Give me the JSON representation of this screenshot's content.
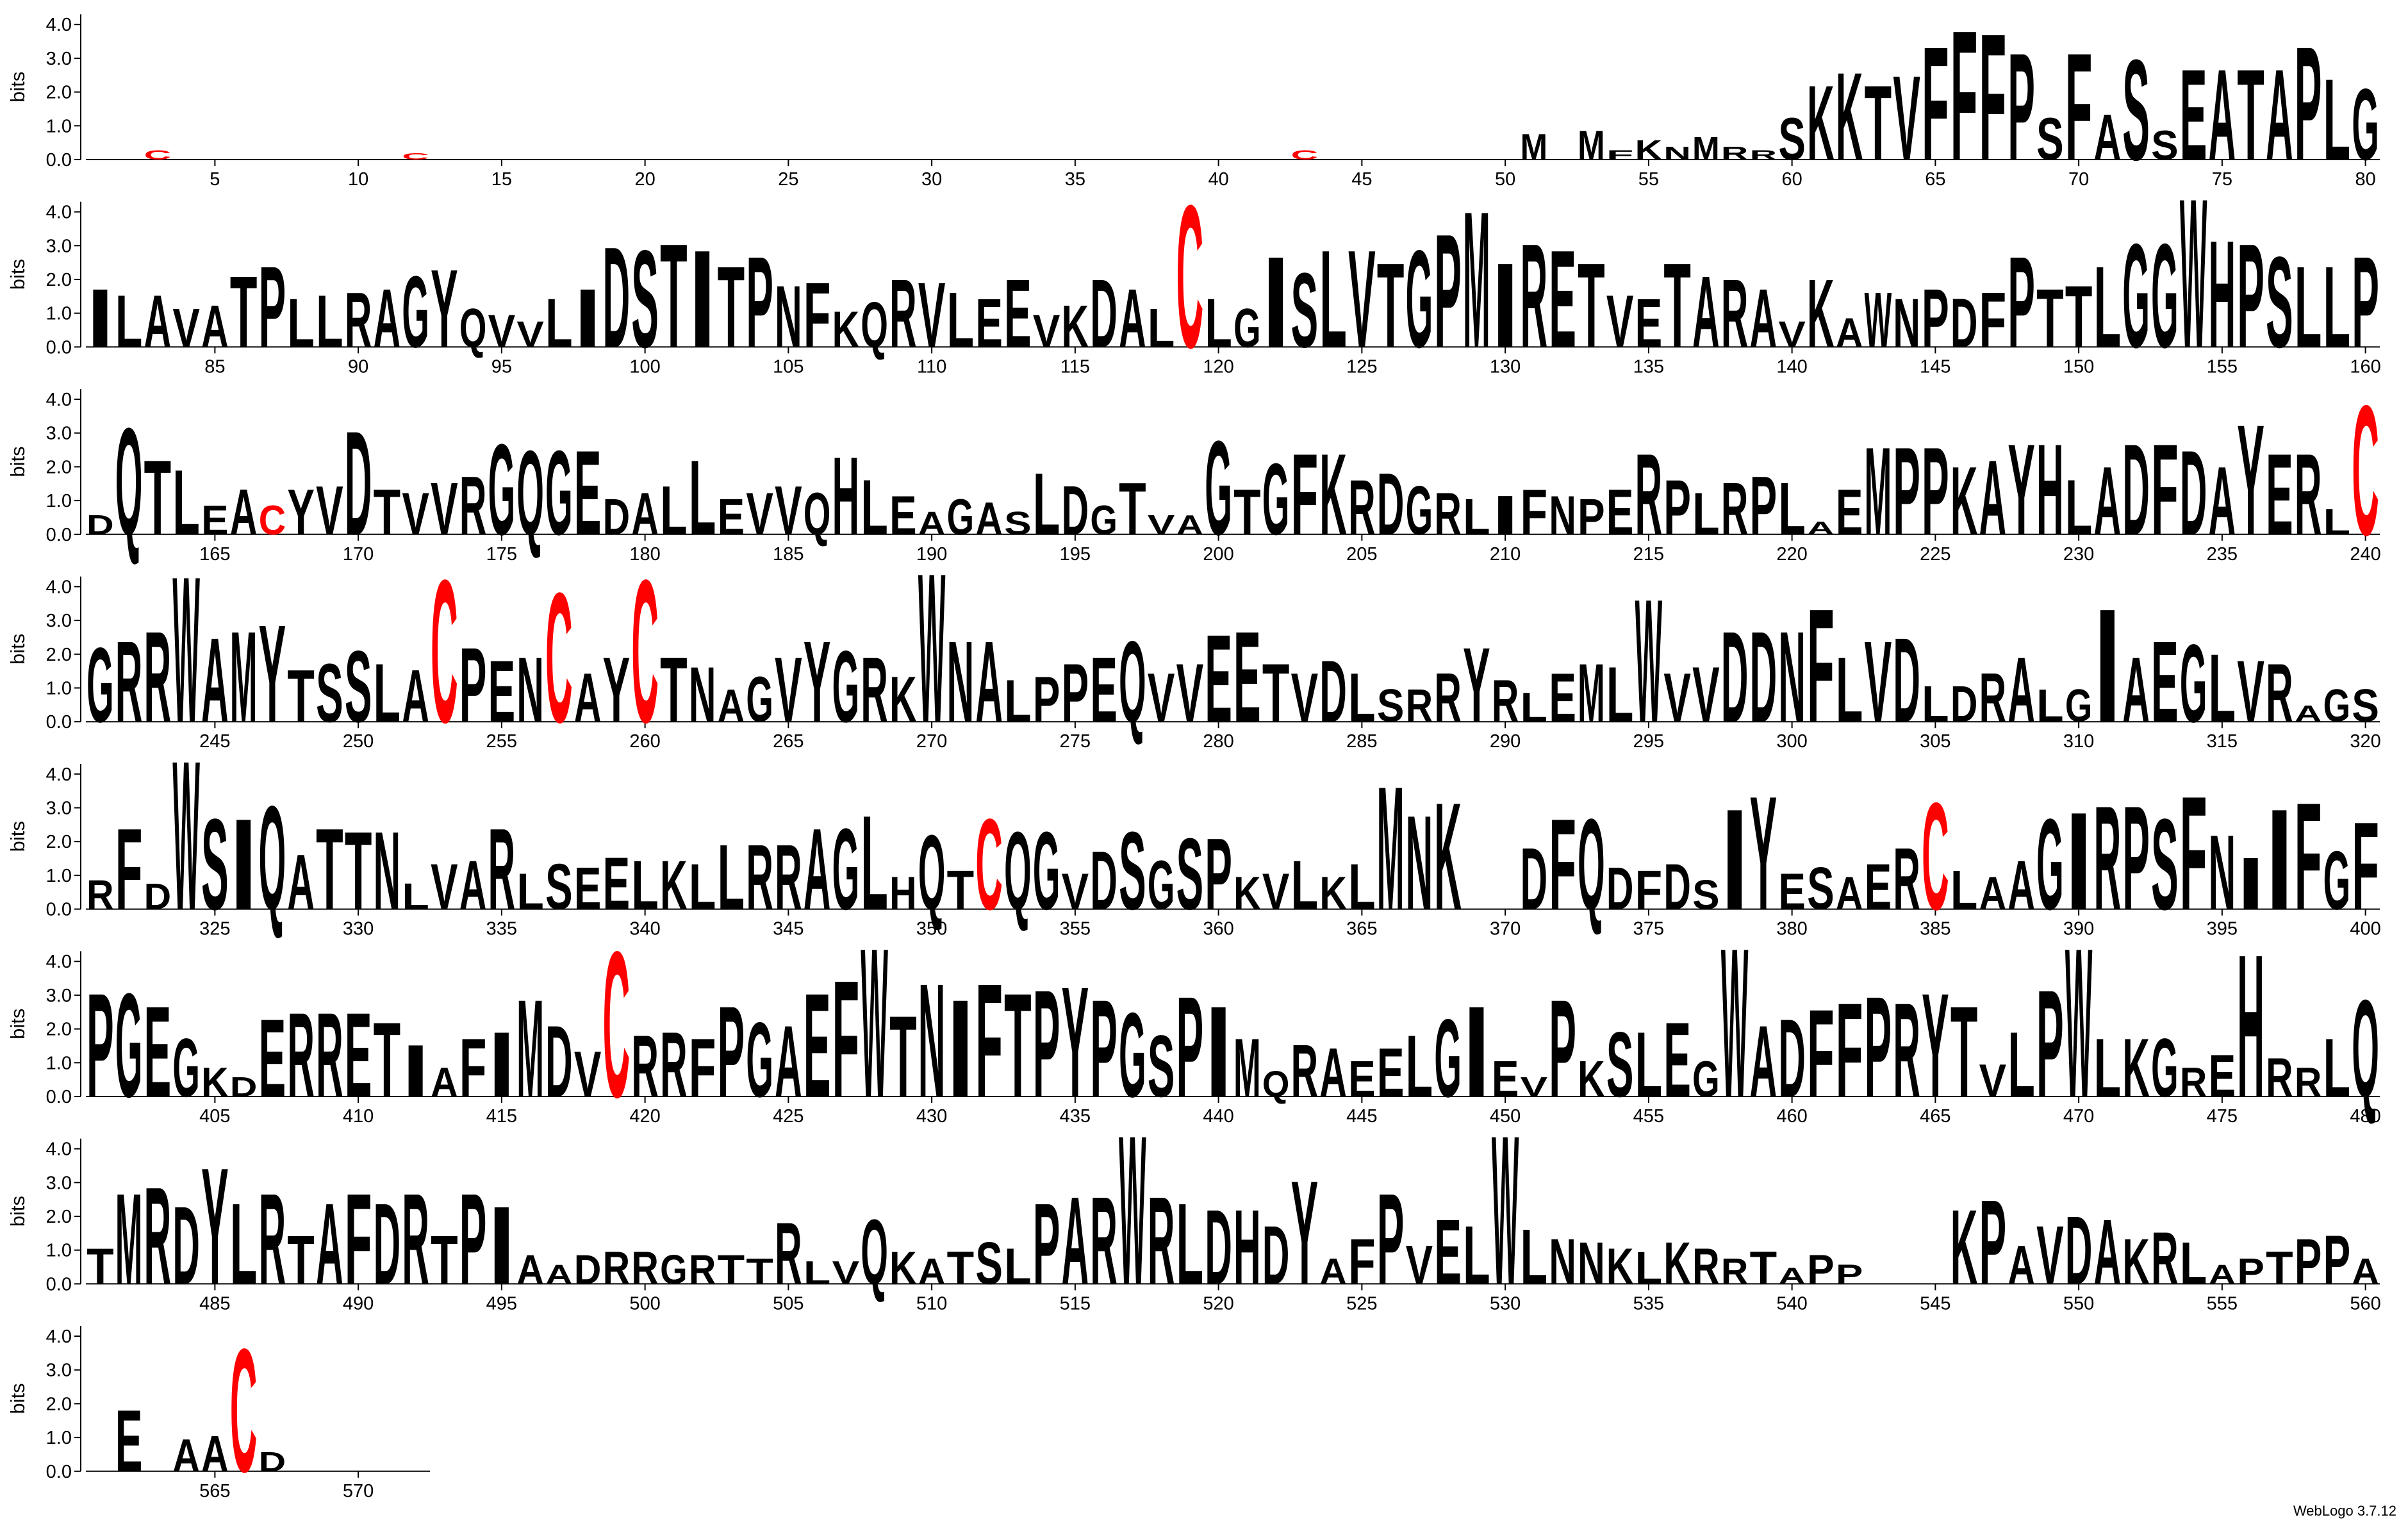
{
  "chart_data": {
    "type": "logo",
    "y_label": "bits",
    "credit": "WebLogo 3.7.12",
    "color": "#000000",
    "colors": {
      "C": "#ff0000"
    },
    "ylim": [
      0,
      4.3
    ],
    "yticks": [
      {
        "value": 0,
        "label": "0.0"
      },
      {
        "value": 1,
        "label": "1.0"
      },
      {
        "value": 2,
        "label": "2.0"
      },
      {
        "value": 3,
        "label": "3.0"
      },
      {
        "value": 4,
        "label": "4.0"
      }
    ],
    "xticks": [
      5,
      10,
      15,
      20,
      25,
      30,
      35,
      40,
      45,
      50,
      55,
      60,
      65,
      70,
      75,
      80,
      85,
      90,
      95,
      100,
      105,
      110,
      115,
      120,
      125,
      130,
      135,
      140,
      145,
      150,
      155,
      160,
      165,
      170,
      175,
      180,
      185,
      190,
      195,
      200,
      205,
      210,
      215,
      220,
      225,
      230,
      235,
      240,
      245,
      250,
      255,
      260,
      265,
      270,
      275,
      280,
      285,
      290,
      295,
      300,
      305,
      310,
      315,
      320,
      325,
      330,
      335,
      340,
      345,
      350,
      355,
      360,
      365,
      370,
      375,
      380,
      385,
      390,
      395,
      400,
      405,
      410,
      415,
      420,
      425,
      430,
      435,
      440,
      445,
      450,
      455,
      460,
      465,
      470,
      475,
      480,
      485,
      490,
      495,
      500,
      505,
      510,
      515,
      520,
      525,
      530,
      535,
      540,
      545,
      550,
      555,
      560,
      565,
      570
    ],
    "letters": [
      null,
      null,
      "C",
      null,
      null,
      null,
      null,
      null,
      null,
      null,
      null,
      "C",
      null,
      null,
      null,
      null,
      null,
      null,
      null,
      null,
      null,
      null,
      null,
      null,
      null,
      null,
      null,
      null,
      null,
      null,
      null,
      null,
      null,
      null,
      null,
      null,
      null,
      null,
      null,
      null,
      null,
      null,
      "C",
      null,
      null,
      null,
      null,
      null,
      null,
      null,
      "M",
      null,
      "M",
      "F",
      "K",
      "N",
      "M",
      "R",
      "R",
      "S",
      "K",
      "K",
      "T",
      "V",
      "F",
      "F",
      "F",
      "P",
      "S",
      "F",
      "A",
      "S",
      "S",
      "E",
      "A",
      "T",
      "A",
      "P",
      "L",
      "G",
      "I",
      "L",
      "A",
      "V",
      "A",
      "T",
      "P",
      "L",
      "L",
      "R",
      "A",
      "G",
      "Y",
      "Q",
      "V",
      "V",
      "L",
      "I",
      "D",
      "S",
      "T",
      "I",
      "T",
      "P",
      "N",
      "F",
      "K",
      "Q",
      "R",
      "V",
      "L",
      "E",
      "E",
      "V",
      "K",
      "D",
      "A",
      "L",
      "C",
      "L",
      "G",
      "I",
      "S",
      "L",
      "V",
      "T",
      "G",
      "P",
      "M",
      "I",
      "R",
      "E",
      "T",
      "V",
      "E",
      "T",
      "A",
      "R",
      "A",
      "V",
      "K",
      "A",
      "W",
      "N",
      "P",
      "D",
      "F",
      "P",
      "T",
      "T",
      "L",
      "G",
      "G",
      "W",
      "H",
      "P",
      "S",
      "L",
      "L",
      "P",
      "D",
      "Q",
      "T",
      "L",
      "E",
      "A",
      "C",
      "Y",
      "V",
      "D",
      "T",
      "V",
      "V",
      "R",
      "G",
      "Q",
      "G",
      "E",
      "D",
      "A",
      "L",
      "L",
      "E",
      "V",
      "V",
      "Q",
      "H",
      "L",
      "E",
      "A",
      "G",
      "A",
      "S",
      "L",
      "D",
      "G",
      "T",
      "V",
      "A",
      "G",
      "T",
      "G",
      "F",
      "K",
      "R",
      "D",
      "G",
      "R",
      "L",
      "I",
      "F",
      "N",
      "P",
      "E",
      "R",
      "P",
      "L",
      "R",
      "P",
      "L",
      "A",
      "E",
      "M",
      "P",
      "P",
      "K",
      "A",
      "Y",
      "H",
      "L",
      "A",
      "D",
      "F",
      "D",
      "A",
      "Y",
      "E",
      "R",
      "L",
      "C",
      "G",
      "R",
      "R",
      "W",
      "A",
      "M",
      "Y",
      "T",
      "S",
      "S",
      "L",
      "A",
      "C",
      "P",
      "E",
      "N",
      "C",
      "A",
      "Y",
      "C",
      "T",
      "N",
      "A",
      "G",
      "V",
      "Y",
      "G",
      "R",
      "K",
      "W",
      "N",
      "A",
      "L",
      "P",
      "P",
      "E",
      "Q",
      "V",
      "V",
      "E",
      "E",
      "T",
      "V",
      "D",
      "L",
      "S",
      "R",
      "R",
      "Y",
      "R",
      "L",
      "E",
      "M",
      "L",
      "W",
      "V",
      "V",
      "D",
      "D",
      "N",
      "F",
      "L",
      "V",
      "D",
      "L",
      "D",
      "R",
      "A",
      "L",
      "G",
      "I",
      "A",
      "E",
      "G",
      "L",
      "V",
      "R",
      "A",
      "G",
      "S",
      "R",
      "F",
      "D",
      "W",
      "S",
      "I",
      "Q",
      "A",
      "T",
      "T",
      "N",
      "L",
      "V",
      "A",
      "R",
      "L",
      "S",
      "E",
      "E",
      "L",
      "K",
      "L",
      "L",
      "R",
      "R",
      "A",
      "G",
      "L",
      "H",
      "Q",
      "T",
      "C",
      "Q",
      "G",
      "V",
      "D",
      "S",
      "G",
      "S",
      "P",
      "K",
      "V",
      "L",
      "K",
      "L",
      "M",
      "N",
      "K",
      null,
      null,
      "D",
      "F",
      "Q",
      "D",
      "F",
      "D",
      "S",
      "I",
      "Y",
      "E",
      "S",
      "A",
      "E",
      "R",
      "C",
      "L",
      "A",
      "A",
      "G",
      "I",
      "R",
      "P",
      "S",
      "F",
      "N",
      "I",
      "I",
      "F",
      "G",
      "F",
      "P",
      "G",
      "E",
      "G",
      "K",
      "D",
      "E",
      "R",
      "R",
      "E",
      "T",
      "I",
      "A",
      "F",
      "I",
      "M",
      "D",
      "V",
      "C",
      "R",
      "R",
      "F",
      "P",
      "G",
      "A",
      "E",
      "F",
      "W",
      "T",
      "N",
      "I",
      "F",
      "T",
      "P",
      "Y",
      "P",
      "G",
      "S",
      "P",
      "I",
      "M",
      "Q",
      "R",
      "A",
      "E",
      "E",
      "L",
      "G",
      "I",
      "E",
      "V",
      "P",
      "K",
      "S",
      "L",
      "E",
      "G",
      "W",
      "A",
      "D",
      "F",
      "F",
      "P",
      "R",
      "Y",
      "T",
      "V",
      "L",
      "P",
      "W",
      "L",
      "K",
      "G",
      "R",
      "E",
      "H",
      "R",
      "R",
      "L",
      "Q",
      "T",
      "M",
      "R",
      "D",
      "Y",
      "L",
      "R",
      "T",
      "A",
      "F",
      "D",
      "R",
      "T",
      "P",
      "I",
      "A",
      "A",
      "D",
      "R",
      "R",
      "G",
      "R",
      "T",
      "T",
      "R",
      "L",
      "V",
      "Q",
      "K",
      "A",
      "T",
      "S",
      "L",
      "P",
      "A",
      "R",
      "W",
      "R",
      "L",
      "D",
      "H",
      "D",
      "Y",
      "A",
      "F",
      "P",
      "V",
      "E",
      "L",
      "W",
      "L",
      "N",
      "N",
      "K",
      "L",
      "K",
      "R",
      "R",
      "T",
      "A",
      "P",
      "P",
      null,
      null,
      null,
      "K",
      "P",
      "A",
      "V",
      "D",
      "A",
      "K",
      "R",
      "L",
      "A",
      "P",
      "T",
      "P",
      "P",
      "A",
      null,
      "E",
      null,
      "A",
      "A",
      "C",
      "D",
      null,
      null,
      null,
      null,
      null
    ],
    "values": [
      null,
      null,
      0.3,
      null,
      null,
      null,
      null,
      null,
      null,
      null,
      null,
      0.2,
      null,
      null,
      null,
      null,
      null,
      null,
      null,
      null,
      null,
      null,
      null,
      null,
      null,
      null,
      null,
      null,
      null,
      null,
      null,
      null,
      null,
      null,
      null,
      null,
      null,
      null,
      null,
      null,
      null,
      null,
      0.3,
      null,
      null,
      null,
      null,
      null,
      null,
      null,
      0.8,
      null,
      0.9,
      0.3,
      0.6,
      0.4,
      0.7,
      0.4,
      0.3,
      1.3,
      2.3,
      2.7,
      2.3,
      2.6,
      3.5,
      4.0,
      3.9,
      3.3,
      1.3,
      3.3,
      1.4,
      3.1,
      0.9,
      2.8,
      2.8,
      2.8,
      2.8,
      3.5,
      2.5,
      2.2,
      1.8,
      1.6,
      1.6,
      1.2,
      1.3,
      2.2,
      2.5,
      1.5,
      1.6,
      1.7,
      1.8,
      2.2,
      2.4,
      1.2,
      1.0,
      0.8,
      1.5,
      1.8,
      3.1,
      3.0,
      3.2,
      3.0,
      2.5,
      2.8,
      1.9,
      2.0,
      1.1,
      1.4,
      2.1,
      2.0,
      1.7,
      1.5,
      2.1,
      1.0,
      1.3,
      2.1,
      1.8,
      1.2,
      4.4,
      1.5,
      1.2,
      2.8,
      2.3,
      3.0,
      3.0,
      2.6,
      3.0,
      3.5,
      4.2,
      2.6,
      3.2,
      3.0,
      2.6,
      1.6,
      1.5,
      2.6,
      2.2,
      2.1,
      1.8,
      0.8,
      2.1,
      0.9,
      1.7,
      1.5,
      1.8,
      1.5,
      1.7,
      2.8,
      1.8,
      1.9,
      2.5,
      3.2,
      3.2,
      4.6,
      3.3,
      3.2,
      2.8,
      2.5,
      2.5,
      2.8,
      0.6,
      3.3,
      2.3,
      2.0,
      0.9,
      1.4,
      0.9,
      1.4,
      1.5,
      3.2,
      1.4,
      1.3,
      1.6,
      1.8,
      2.8,
      2.6,
      2.6,
      2.6,
      1.1,
      1.3,
      1.5,
      2.3,
      1.1,
      1.3,
      1.5,
      1.3,
      2.4,
      1.7,
      1.2,
      0.7,
      1.1,
      1.0,
      0.7,
      1.9,
      1.5,
      0.9,
      1.6,
      0.6,
      0.6,
      2.9,
      1.4,
      2.2,
      2.5,
      2.5,
      1.7,
      1.9,
      1.5,
      1.3,
      1.1,
      1.2,
      1.4,
      1.2,
      1.1,
      1.4,
      2.5,
      1.7,
      1.3,
      1.6,
      1.8,
      1.6,
      0.4,
      1.4,
      2.7,
      2.7,
      2.7,
      2.1,
      2.3,
      2.8,
      2.8,
      1.7,
      2.1,
      2.8,
      2.8,
      2.6,
      2.1,
      3.4,
      2.5,
      2.5,
      0.8,
      4.0,
      2.3,
      2.5,
      2.8,
      4.5,
      2.6,
      2.8,
      3.0,
      1.6,
      1.8,
      2.2,
      1.8,
      1.6,
      4.4,
      2.3,
      1.9,
      2.0,
      4.0,
      1.5,
      2.0,
      4.4,
      2.0,
      1.7,
      1.0,
      1.4,
      2.0,
      2.5,
      2.2,
      2.0,
      1.4,
      4.6,
      2.5,
      2.5,
      1.3,
      1.4,
      1.8,
      2.0,
      2.5,
      1.5,
      1.8,
      2.7,
      2.8,
      1.8,
      1.5,
      1.9,
      1.5,
      1.0,
      1.0,
      1.5,
      2.3,
      1.3,
      0.9,
      1.5,
      1.8,
      1.7,
      3.8,
      1.5,
      1.7,
      2.8,
      2.8,
      2.8,
      3.5,
      2.0,
      2.5,
      2.6,
      1.1,
      1.1,
      1.5,
      2.0,
      1.0,
      1.0,
      3.5,
      2.0,
      2.5,
      2.4,
      2.1,
      1.9,
      1.8,
      0.5,
      1.0,
      1.0,
      0.9,
      2.5,
      0.8,
      4.6,
      2.8,
      2.8,
      3.2,
      1.7,
      2.5,
      2.4,
      2.4,
      0.8,
      1.4,
      1.5,
      2.5,
      1.1,
      1.4,
      1.3,
      1.6,
      1.5,
      1.5,
      1.4,
      2.0,
      2.0,
      2.0,
      2.5,
      2.5,
      2.9,
      1.0,
      2.3,
      1.2,
      2.8,
      2.4,
      2.4,
      1.1,
      1.8,
      2.4,
      1.5,
      2.2,
      2.2,
      1.0,
      1.1,
      1.5,
      1.0,
      1.4,
      3.8,
      2.9,
      3.3,
      null,
      null,
      1.9,
      2.8,
      2.8,
      1.3,
      1.2,
      1.4,
      0.9,
      3.1,
      3.5,
      1.1,
      1.3,
      1.0,
      1.4,
      1.9,
      3.3,
      1.2,
      1.0,
      1.5,
      2.8,
      3.0,
      3.2,
      3.2,
      2.8,
      3.5,
      2.3,
      1.6,
      3.1,
      3.3,
      1.8,
      2.7,
      3.2,
      3.2,
      2.8,
      1.8,
      0.9,
      0.6,
      2.4,
      2.6,
      2.6,
      2.6,
      2.3,
      1.6,
      0.9,
      1.8,
      2.0,
      3.0,
      2.2,
      1.4,
      4.5,
      1.9,
      2.0,
      1.8,
      2.8,
      2.3,
      2.2,
      3.2,
      3.6,
      4.6,
      2.5,
      3.5,
      3.0,
      3.5,
      3.2,
      3.3,
      3.4,
      3.0,
      2.6,
      1.9,
      3.1,
      2.8,
      1.8,
      0.8,
      1.6,
      1.5,
      1.1,
      1.5,
      1.9,
      2.4,
      2.8,
      1.1,
      0.6,
      3.0,
      1.1,
      2.0,
      2.0,
      2.3,
      1.1,
      4.6,
      2.2,
      2.4,
      2.7,
      2.9,
      3.1,
      2.9,
      3.2,
      2.8,
      1.0,
      2.0,
      3.3,
      4.6,
      1.8,
      1.8,
      1.8,
      0.9,
      1.3,
      4.4,
      1.2,
      0.9,
      1.8,
      3.0,
      1.1,
      2.8,
      3.0,
      2.4,
      3.6,
      2.5,
      2.8,
      1.5,
      2.5,
      2.8,
      2.5,
      2.8,
      1.5,
      2.8,
      2.4,
      0.9,
      0.6,
      0.9,
      1.0,
      1.0,
      0.9,
      0.9,
      0.9,
      0.8,
      1.9,
      0.7,
      0.7,
      2.0,
      1.0,
      0.8,
      1.0,
      1.3,
      1.1,
      2.5,
      2.7,
      2.7,
      4.6,
      2.7,
      2.5,
      2.3,
      2.3,
      1.8,
      3.2,
      0.8,
      1.4,
      2.8,
      1.2,
      2.0,
      1.8,
      4.6,
      1.7,
      1.4,
      1.3,
      1.1,
      1.0,
      1.3,
      1.1,
      0.8,
      1.0,
      0.5,
      0.9,
      0.6,
      null,
      null,
      null,
      2.3,
      2.6,
      1.2,
      1.8,
      2.1,
      2.0,
      1.4,
      1.6,
      1.3,
      0.6,
      0.8,
      1.0,
      1.4,
      1.5,
      0.8,
      null,
      1.9,
      null,
      1.0,
      1.1,
      3.8,
      0.6,
      null,
      null,
      null,
      null,
      null
    ]
  }
}
